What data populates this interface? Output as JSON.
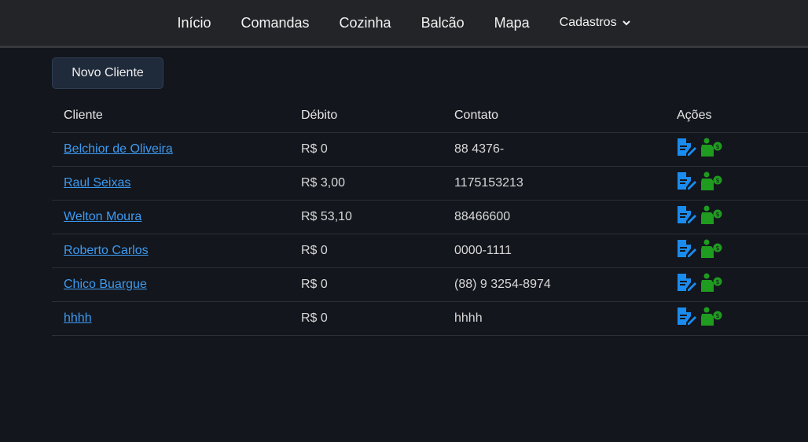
{
  "nav": {
    "items": [
      "Início",
      "Comandas",
      "Cozinha",
      "Balcão",
      "Mapa"
    ],
    "dropdown": "Cadastros"
  },
  "new_button": "Novo Cliente",
  "table": {
    "headers": [
      "Cliente",
      "Débito",
      "Contato",
      "Ações"
    ],
    "rows": [
      {
        "cliente": "Belchior de Oliveira",
        "debito": "R$ 0",
        "contato": "88 4376-"
      },
      {
        "cliente": "Raul Seixas",
        "debito": "R$ 3,00",
        "contato": "1175153213"
      },
      {
        "cliente": "Welton Moura",
        "debito": "R$ 53,10",
        "contato": "88466600"
      },
      {
        "cliente": "Roberto Carlos",
        "debito": "R$ 0",
        "contato": "0000-1111"
      },
      {
        "cliente": "Chico Buargue",
        "debito": "R$ 0",
        "contato": "(88) 9 3254-8974"
      },
      {
        "cliente": "hhhh",
        "debito": "R$ 0",
        "contato": "hhhh"
      }
    ]
  },
  "icons": {
    "edit": "file-edit-icon",
    "payment": "person-money-icon"
  },
  "colors": {
    "link": "#3d9bf0",
    "edit_icon": "#1a8cf0",
    "pay_icon": "#1f9b1f"
  }
}
